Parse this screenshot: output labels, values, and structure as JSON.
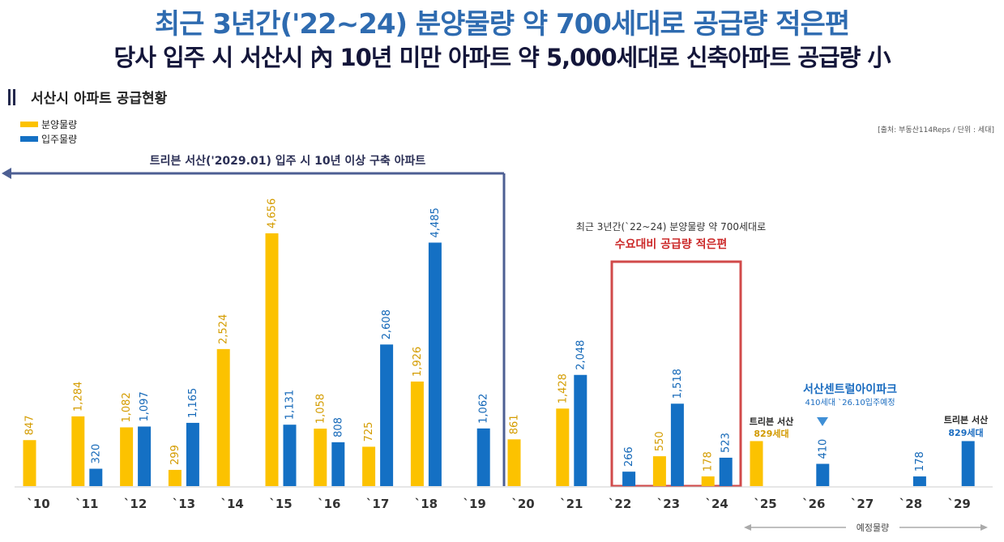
{
  "title_main": "최근 3년간('22~24) 분양물량 약 700세대로 공급량 적은편",
  "title_sub": "당사 입주 시 서산시 內 10년 미만 아파트 약 5,000세대로 신축아파트 공급량 小",
  "section_title": "서산시 아파트 공급현황",
  "source_note": "[출처: 부동산114Reps / 단위 : 세대]",
  "colors": {
    "supply": "#fcc200",
    "move_in": "#1470c4",
    "accent": "#d14a4a",
    "arrow": "#4d5f93"
  },
  "annotations": {
    "old_apartments": "트리븐 서산('2029.01) 입주 시 10년 이상 구축 아파트",
    "recent_note": "최근 3년간(`22~24) 분양물량 약 700세대로",
    "recent_highlight": "수요대비 공급량 적은편",
    "sc_name": "서산센트럴아이파크",
    "sc_detail": "410세대 `26.10입주예정",
    "tv_name_1": "트리븐 서산",
    "tv_units_1": "829세대",
    "tv_name_2": "트리븐 서산",
    "tv_units_2": "829세대",
    "planned": "예정물량"
  },
  "chart_data": {
    "type": "bar",
    "categories": [
      "`10",
      "`11",
      "`12",
      "`13",
      "`14",
      "`15",
      "`16",
      "`17",
      "`18",
      "`19",
      "`20",
      "`21",
      "`22",
      "`23",
      "`24",
      "`25",
      "`26",
      "`27",
      "`28",
      "`29"
    ],
    "series": [
      {
        "name": "분양물량",
        "values": [
          847,
          1284,
          1082,
          299,
          2524,
          4656,
          1058,
          725,
          1926,
          null,
          861,
          1428,
          null,
          550,
          178,
          829,
          null,
          null,
          null,
          null
        ]
      },
      {
        "name": "입주물량",
        "values": [
          null,
          320,
          1097,
          1165,
          null,
          1131,
          808,
          2608,
          4485,
          1062,
          null,
          2048,
          266,
          1518,
          523,
          null,
          410,
          null,
          178,
          829
        ]
      }
    ],
    "value_labels": {
      "supply": [
        "847",
        "1,284",
        "1,082",
        "299",
        "2,524",
        "4,656",
        "1,058",
        "725",
        "1,926",
        "",
        "861",
        "1,428",
        "",
        "550",
        "178",
        "",
        "",
        "",
        "",
        ""
      ],
      "move_in": [
        "",
        "320",
        "1,097",
        "1,165",
        "",
        "1,131",
        "808",
        "2,608",
        "4,485",
        "1,062",
        "",
        "2,048",
        "266",
        "1,518",
        "523",
        "",
        "410",
        "",
        "178",
        ""
      ]
    },
    "legend_placement": "top-left",
    "grid": false
  }
}
